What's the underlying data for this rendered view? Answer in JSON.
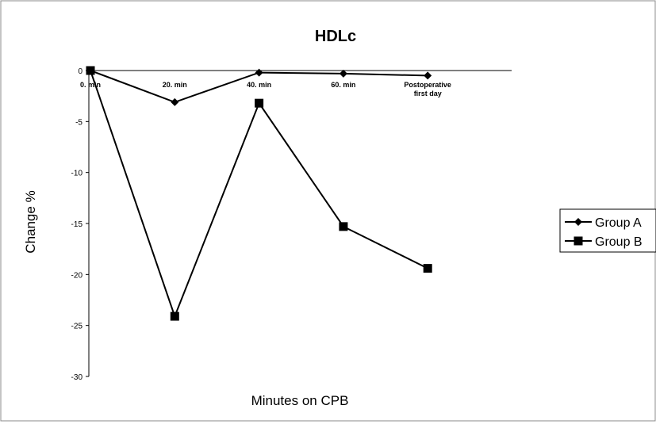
{
  "chart_data": {
    "type": "line",
    "title": "HDLc",
    "xlabel": "Minutes on CPB",
    "ylabel": "Change %",
    "categories": [
      "0. min",
      "20. min",
      "40. min",
      "60. min",
      "Postoperative first day"
    ],
    "series": [
      {
        "name": "Group A",
        "color": "#000000",
        "marker": "diamond",
        "values": [
          0,
          -3.1,
          -0.2,
          -0.3,
          -0.5
        ]
      },
      {
        "name": "Group B",
        "color": "#000000",
        "marker": "square",
        "values": [
          0,
          -24.1,
          -3.2,
          -15.3,
          -19.4
        ]
      }
    ],
    "ylim": [
      -30,
      0
    ],
    "yticks": [
      -30,
      -25,
      -20,
      -15,
      -10,
      -5,
      0
    ],
    "legend": "right"
  }
}
